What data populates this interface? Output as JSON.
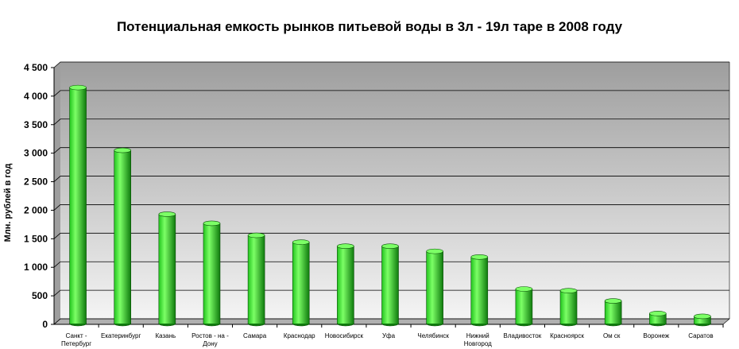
{
  "chart_data": {
    "type": "bar",
    "title": "Потенциальная емкость рынков питьевой воды в 3л - 19л таре в 2008 году",
    "ylabel": "Млн. рублей в год",
    "xlabel": "",
    "ylim": [
      0,
      4500
    ],
    "yticks": [
      "0",
      "500",
      "1 000",
      "1 500",
      "2 000",
      "2 500",
      "3 000",
      "3 500",
      "4 000",
      "4 500"
    ],
    "ytick_values": [
      0,
      500,
      1000,
      1500,
      2000,
      2500,
      3000,
      3500,
      4000,
      4500
    ],
    "categories": [
      [
        "Санкт -",
        "Петербург"
      ],
      [
        "Екатеринбург"
      ],
      [
        "Казань"
      ],
      [
        "Ростов - на -",
        "Дону"
      ],
      [
        "Самара"
      ],
      [
        "Краснодар"
      ],
      [
        "Новосибирск"
      ],
      [
        "Уфа"
      ],
      [
        "Челябинск"
      ],
      [
        "Нижний",
        "Новгород"
      ],
      [
        "Владивосток"
      ],
      [
        "Красноярск"
      ],
      [
        "Ом ск"
      ],
      [
        "Воронеж"
      ],
      [
        "Саратов"
      ]
    ],
    "values": [
      4150,
      3050,
      1930,
      1770,
      1560,
      1440,
      1370,
      1370,
      1280,
      1180,
      620,
      590,
      410,
      190,
      140
    ],
    "grid": true,
    "legend": "none",
    "colors": {
      "bar": "#22c41e",
      "bar_light": "#7cff66",
      "bar_dark": "#0f7a0d",
      "bar_edge": "#0a4f08",
      "wall_top": "#9e9e9e",
      "wall_bottom": "#f4f4f4",
      "floor": "#b0b0b0",
      "gridline": "#000000"
    }
  }
}
